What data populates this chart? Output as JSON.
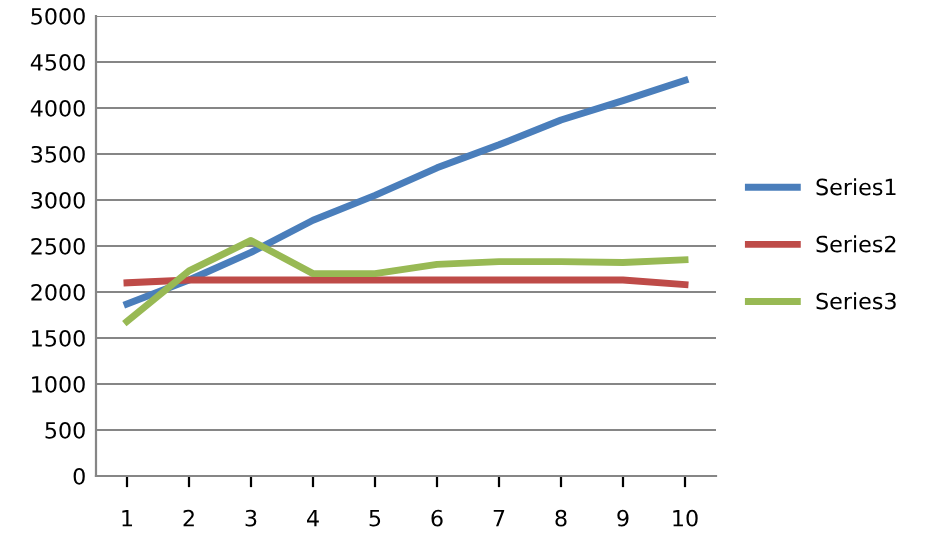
{
  "chart_data": {
    "type": "line",
    "categories": [
      "1",
      "2",
      "3",
      "4",
      "5",
      "6",
      "7",
      "8",
      "9",
      "10"
    ],
    "series": [
      {
        "name": "Series1",
        "color": "#4a7ebb",
        "values": [
          1870,
          2130,
          2430,
          2780,
          3050,
          3350,
          3600,
          3870,
          4080,
          4300
        ]
      },
      {
        "name": "Series2",
        "color": "#be4b48",
        "values": [
          2100,
          2130,
          2130,
          2130,
          2130,
          2130,
          2130,
          2130,
          2130,
          2080
        ]
      },
      {
        "name": "Series3",
        "color": "#98b954",
        "values": [
          1680,
          2230,
          2560,
          2200,
          2200,
          2300,
          2330,
          2330,
          2320,
          2350
        ]
      }
    ],
    "ylim": [
      0,
      5000
    ],
    "yticks": [
      0,
      500,
      1000,
      1500,
      2000,
      2500,
      3000,
      3500,
      4000,
      4500,
      5000
    ],
    "grid": "y",
    "legend": "right",
    "marker": "none"
  }
}
